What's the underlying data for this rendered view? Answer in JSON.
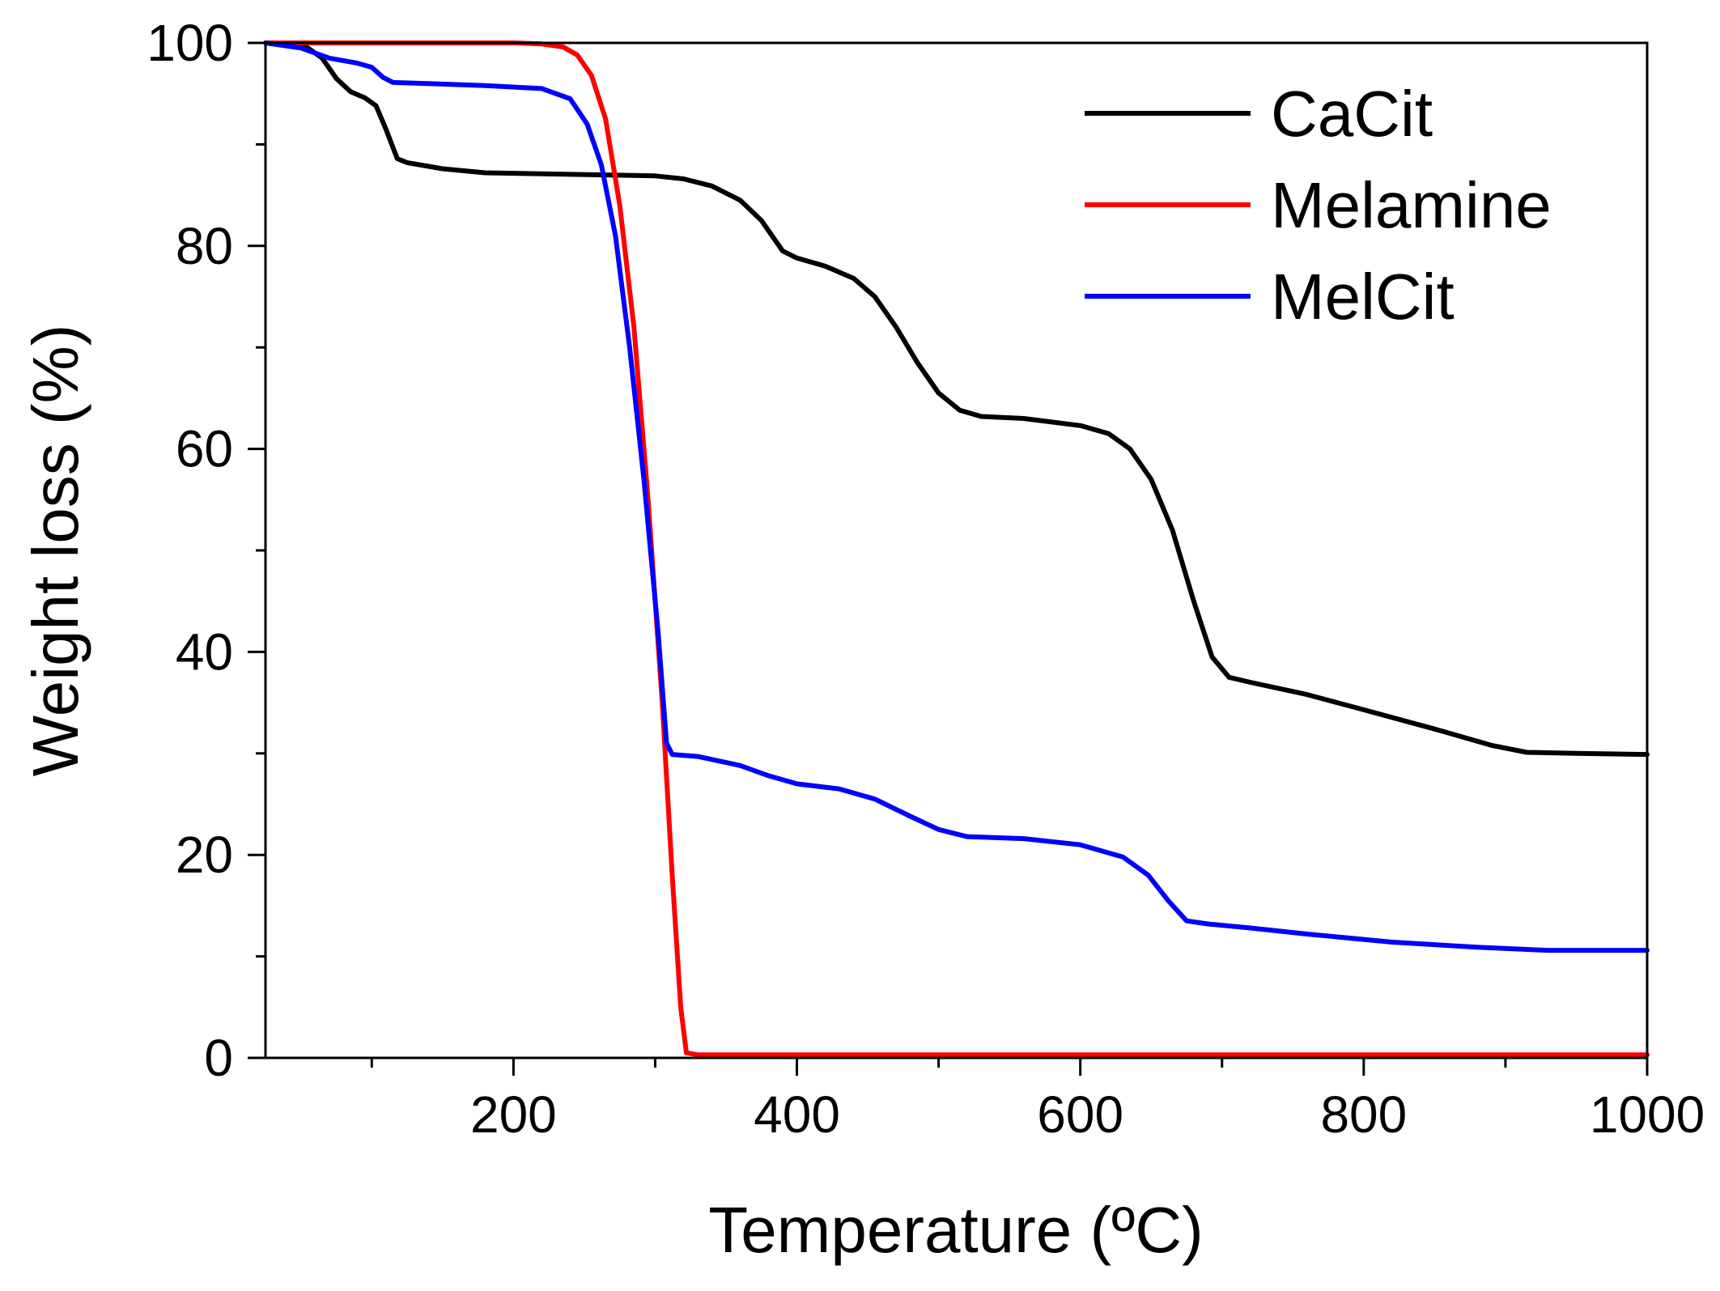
{
  "chart_data": {
    "type": "line",
    "title": "",
    "xlabel": "Temperature (ºC)",
    "ylabel": "Weight loss (%)",
    "xlim": [
      25,
      1000
    ],
    "ylim": [
      0,
      100
    ],
    "x_ticks_major": [
      200,
      400,
      600,
      800,
      1000
    ],
    "x_tick_labels": [
      "200",
      "400",
      "600",
      "800",
      "1000"
    ],
    "x_ticks_minor": [
      100,
      300,
      500,
      700,
      900
    ],
    "y_ticks_major": [
      0,
      20,
      40,
      60,
      80,
      100
    ],
    "y_tick_labels": [
      "0",
      "20",
      "40",
      "60",
      "80",
      "100"
    ],
    "y_ticks_minor": [
      10,
      30,
      50,
      70,
      90
    ],
    "grid": false,
    "legend_position": "top-right",
    "series": [
      {
        "name": "CaCit",
        "color": "#000000",
        "points": [
          [
            25,
            100
          ],
          [
            40,
            100
          ],
          [
            55,
            99.5
          ],
          [
            65,
            98.5
          ],
          [
            75,
            96.5
          ],
          [
            85,
            95.2
          ],
          [
            95,
            94.6
          ],
          [
            103,
            93.8
          ],
          [
            110,
            91.5
          ],
          [
            118,
            88.6
          ],
          [
            125,
            88.2
          ],
          [
            150,
            87.6
          ],
          [
            180,
            87.2
          ],
          [
            220,
            87.1
          ],
          [
            260,
            87.0
          ],
          [
            300,
            86.9
          ],
          [
            320,
            86.6
          ],
          [
            340,
            85.9
          ],
          [
            360,
            84.5
          ],
          [
            375,
            82.5
          ],
          [
            390,
            79.5
          ],
          [
            400,
            78.8
          ],
          [
            420,
            78.0
          ],
          [
            440,
            76.8
          ],
          [
            455,
            75.0
          ],
          [
            470,
            72.0
          ],
          [
            485,
            68.5
          ],
          [
            500,
            65.5
          ],
          [
            515,
            63.8
          ],
          [
            530,
            63.2
          ],
          [
            560,
            63.0
          ],
          [
            600,
            62.3
          ],
          [
            620,
            61.5
          ],
          [
            635,
            60.0
          ],
          [
            650,
            57.0
          ],
          [
            665,
            52.0
          ],
          [
            680,
            45.0
          ],
          [
            693,
            39.5
          ],
          [
            705,
            37.5
          ],
          [
            720,
            37.0
          ],
          [
            760,
            35.8
          ],
          [
            800,
            34.3
          ],
          [
            850,
            32.4
          ],
          [
            890,
            30.8
          ],
          [
            915,
            30.1
          ],
          [
            950,
            30.0
          ],
          [
            1000,
            29.9
          ]
        ]
      },
      {
        "name": "Melamine",
        "color": "#ff0000",
        "points": [
          [
            25,
            100
          ],
          [
            200,
            100
          ],
          [
            220,
            99.9
          ],
          [
            235,
            99.6
          ],
          [
            245,
            98.8
          ],
          [
            255,
            96.8
          ],
          [
            265,
            92.5
          ],
          [
            275,
            84.0
          ],
          [
            285,
            72.0
          ],
          [
            295,
            55.0
          ],
          [
            305,
            35.0
          ],
          [
            312,
            18.0
          ],
          [
            318,
            5.0
          ],
          [
            322,
            0.5
          ],
          [
            330,
            0.3
          ],
          [
            1000,
            0.3
          ]
        ]
      },
      {
        "name": "MelCit",
        "color": "#0000ff",
        "points": [
          [
            25,
            100
          ],
          [
            50,
            99.5
          ],
          [
            70,
            98.5
          ],
          [
            90,
            98.0
          ],
          [
            100,
            97.6
          ],
          [
            108,
            96.6
          ],
          [
            115,
            96.1
          ],
          [
            140,
            96.0
          ],
          [
            180,
            95.8
          ],
          [
            220,
            95.5
          ],
          [
            240,
            94.5
          ],
          [
            252,
            92.0
          ],
          [
            262,
            88.0
          ],
          [
            272,
            81.0
          ],
          [
            282,
            70.0
          ],
          [
            292,
            57.0
          ],
          [
            302,
            42.0
          ],
          [
            308,
            31.0
          ],
          [
            312,
            29.9
          ],
          [
            330,
            29.7
          ],
          [
            360,
            28.8
          ],
          [
            380,
            27.8
          ],
          [
            400,
            27.0
          ],
          [
            430,
            26.5
          ],
          [
            455,
            25.5
          ],
          [
            480,
            23.8
          ],
          [
            500,
            22.5
          ],
          [
            520,
            21.8
          ],
          [
            560,
            21.6
          ],
          [
            600,
            21.0
          ],
          [
            630,
            19.8
          ],
          [
            648,
            18.0
          ],
          [
            662,
            15.5
          ],
          [
            675,
            13.5
          ],
          [
            690,
            13.2
          ],
          [
            720,
            12.8
          ],
          [
            760,
            12.2
          ],
          [
            820,
            11.4
          ],
          [
            880,
            10.9
          ],
          [
            930,
            10.6
          ],
          [
            1000,
            10.6
          ]
        ]
      }
    ]
  }
}
